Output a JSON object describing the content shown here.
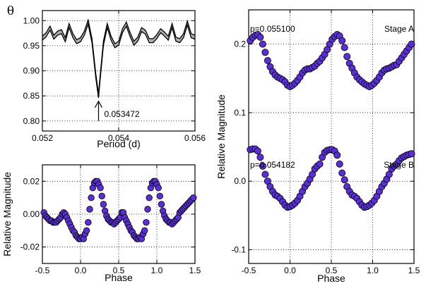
{
  "colors": {
    "marker_fill": "#5a2fd6",
    "marker_edge": "#000000",
    "line": "#000000",
    "band": "#666666"
  },
  "chart_data": [
    {
      "id": "periodogram",
      "type": "line",
      "title": "",
      "xlabel": "Period (d)",
      "ylabel": "θ",
      "xlim": [
        0.052,
        0.056
      ],
      "ylim": [
        0.78,
        1.02
      ],
      "xticks": [
        "0.052",
        "0.054",
        "0.056"
      ],
      "xtick_values": [
        0.052,
        0.054,
        0.056
      ],
      "yticks": [
        "0.80",
        "0.85",
        "0.90",
        "0.95",
        "1.00"
      ],
      "ytick_values": [
        0.8,
        0.85,
        0.9,
        0.95,
        1.0
      ],
      "grid": true,
      "band_halfwidth": 0.004,
      "annotation": {
        "text": "0.053472",
        "x": 0.053472,
        "y_tip": 0.845,
        "y_tail": 0.8
      },
      "x": [
        0.052,
        0.0521,
        0.0522,
        0.0523,
        0.0524,
        0.0525,
        0.0526,
        0.0527,
        0.0528,
        0.0529,
        0.053,
        0.0531,
        0.0532,
        0.0533,
        0.0534,
        0.05347,
        0.0535,
        0.0536,
        0.0537,
        0.0538,
        0.0539,
        0.054,
        0.0541,
        0.0542,
        0.0543,
        0.0544,
        0.0545,
        0.0546,
        0.0547,
        0.0548,
        0.0549,
        0.055,
        0.0551,
        0.0552,
        0.0553,
        0.0554,
        0.0555,
        0.0556,
        0.0557,
        0.0558,
        0.0559,
        0.056
      ],
      "y": [
        0.965,
        0.972,
        0.985,
        0.967,
        0.975,
        0.978,
        0.962,
        0.99,
        0.97,
        0.958,
        0.962,
        0.975,
        0.997,
        0.96,
        0.89,
        0.85,
        0.875,
        0.955,
        0.99,
        0.965,
        0.95,
        0.955,
        0.98,
        0.993,
        0.972,
        0.955,
        0.963,
        0.982,
        0.977,
        0.96,
        0.96,
        0.968,
        0.98,
        0.973,
        0.965,
        0.99,
        0.963,
        0.96,
        0.97,
        0.995,
        0.97,
        0.967
      ]
    },
    {
      "id": "phase-lower-left",
      "type": "scatter",
      "title": "",
      "xlabel": "Phase",
      "ylabel": "Relative Magnitude",
      "xlim": [
        -0.5,
        1.5
      ],
      "ylim": [
        0.03,
        -0.03
      ],
      "xticks": [
        "-0.5",
        "0.0",
        "0.5",
        "1.0",
        "1.5"
      ],
      "xtick_values": [
        -0.5,
        0.0,
        0.5,
        1.0,
        1.5
      ],
      "yticks": [
        "-0.02",
        "0.00",
        "0.02"
      ],
      "ytick_values": [
        -0.02,
        0.0,
        0.02
      ],
      "grid": true,
      "x": [
        -0.48,
        -0.46,
        -0.44,
        -0.42,
        -0.4,
        -0.38,
        -0.36,
        -0.34,
        -0.32,
        -0.3,
        -0.28,
        -0.26,
        -0.24,
        -0.22,
        -0.2,
        -0.18,
        -0.16,
        -0.14,
        -0.12,
        -0.1,
        -0.08,
        -0.06,
        -0.04,
        -0.02,
        0.0,
        0.02,
        0.04,
        0.06,
        0.08,
        0.1,
        0.12,
        0.14,
        0.16,
        0.18,
        0.2,
        0.22,
        0.24,
        0.26,
        0.28,
        0.3,
        0.32,
        0.34,
        0.36,
        0.38,
        0.4,
        0.42,
        0.44,
        0.46,
        0.48,
        0.5,
        0.52,
        0.54,
        0.56,
        0.58,
        0.6,
        0.62,
        0.64,
        0.66,
        0.68,
        0.7,
        0.72,
        0.74,
        0.76,
        0.78,
        0.8,
        0.82,
        0.84,
        0.86,
        0.88,
        0.9,
        0.92,
        0.94,
        0.96,
        0.98,
        1.0,
        1.02,
        1.04,
        1.06,
        1.08,
        1.1,
        1.12,
        1.14,
        1.16,
        1.18,
        1.2,
        1.22,
        1.24,
        1.26,
        1.28,
        1.3,
        1.32,
        1.34,
        1.36,
        1.38,
        1.4,
        1.42,
        1.44,
        1.46,
        1.48
      ],
      "y": [
        0.001,
        -0.001,
        -0.002,
        -0.003,
        -0.004,
        -0.004,
        -0.005,
        -0.005,
        -0.005,
        -0.004,
        -0.003,
        -0.002,
        0.0,
        0.001,
        0.0,
        -0.002,
        -0.004,
        -0.006,
        -0.008,
        -0.01,
        -0.011,
        -0.013,
        -0.014,
        -0.015,
        -0.015,
        -0.014,
        -0.015,
        -0.012,
        -0.01,
        -0.005,
        0.003,
        0.01,
        0.016,
        0.019,
        0.02,
        0.02,
        0.018,
        0.016,
        0.011,
        0.006,
        0.002,
        -0.001,
        -0.003,
        -0.004,
        -0.005,
        -0.005,
        -0.006,
        -0.005,
        -0.004,
        -0.003,
        -0.002,
        0.001,
        0.001,
        -0.002,
        -0.004,
        -0.006,
        -0.008,
        -0.01,
        -0.011,
        -0.013,
        -0.014,
        -0.015,
        -0.015,
        -0.014,
        -0.015,
        -0.012,
        -0.01,
        -0.005,
        0.003,
        0.01,
        0.016,
        0.019,
        0.02,
        0.02,
        0.018,
        0.016,
        0.011,
        0.006,
        0.002,
        -0.001,
        -0.003,
        -0.004,
        -0.005,
        -0.005,
        -0.006,
        -0.005,
        -0.004,
        -0.003,
        -0.002,
        0.001,
        0.002,
        0.003,
        0.004,
        0.005,
        0.006,
        0.007,
        0.008,
        0.009,
        0.01
      ]
    },
    {
      "id": "phase-right",
      "type": "scatter",
      "title": "",
      "xlabel": "Phase",
      "ylabel": "Relative Magnitude",
      "xlim": [
        -0.5,
        1.5
      ],
      "ylim": [
        0.25,
        -0.12
      ],
      "xticks": [
        "-0.5",
        "0.0",
        "0.5",
        "1.0",
        "1.5"
      ],
      "xtick_values": [
        -0.5,
        0.0,
        0.5,
        1.0,
        1.5
      ],
      "yticks": [
        "-0.1",
        "0.0",
        "0.1",
        "0.2"
      ],
      "ytick_values": [
        -0.1,
        0.0,
        0.1,
        0.2
      ],
      "grid": true,
      "series": [
        {
          "name": "Stage A",
          "label_left": "p=0.055100",
          "x": [
            -0.48,
            -0.45,
            -0.42,
            -0.39,
            -0.36,
            -0.33,
            -0.3,
            -0.27,
            -0.24,
            -0.21,
            -0.18,
            -0.15,
            -0.12,
            -0.09,
            -0.06,
            -0.03,
            0.0,
            0.03,
            0.06,
            0.09,
            0.12,
            0.15,
            0.18,
            0.21,
            0.24,
            0.27,
            0.3,
            0.33,
            0.36,
            0.39,
            0.42,
            0.45,
            0.48,
            0.51,
            0.54,
            0.57,
            0.6,
            0.63,
            0.66,
            0.69,
            0.72,
            0.75,
            0.78,
            0.81,
            0.84,
            0.87,
            0.9,
            0.93,
            0.96,
            0.99,
            1.02,
            1.05,
            1.08,
            1.11,
            1.14,
            1.17,
            1.2,
            1.23,
            1.26,
            1.29,
            1.32,
            1.35,
            1.38,
            1.41,
            1.44,
            1.47
          ],
          "y": [
            0.046,
            0.047,
            0.047,
            0.044,
            0.035,
            0.022,
            0.01,
            0.0,
            -0.008,
            -0.015,
            -0.02,
            -0.022,
            -0.025,
            -0.03,
            -0.035,
            -0.038,
            -0.037,
            -0.035,
            -0.032,
            -0.028,
            -0.022,
            -0.015,
            -0.008,
            -0.003,
            0.003,
            0.01,
            0.018,
            0.022,
            0.025,
            0.035,
            0.042,
            0.045,
            0.046,
            0.046,
            0.044,
            0.038,
            0.025,
            0.012,
            0.002,
            -0.008,
            -0.015,
            -0.02,
            -0.022,
            -0.025,
            -0.03,
            -0.035,
            -0.038,
            -0.037,
            -0.035,
            -0.032,
            -0.028,
            -0.022,
            -0.015,
            -0.008,
            -0.003,
            0.003,
            0.01,
            0.018,
            0.022,
            0.025,
            0.03,
            0.034,
            0.036,
            0.038,
            0.039,
            0.04
          ]
        },
        {
          "name": "Stage B",
          "label_left": "p=0.054182",
          "x": [
            -0.48,
            -0.45,
            -0.42,
            -0.39,
            -0.36,
            -0.33,
            -0.3,
            -0.27,
            -0.24,
            -0.21,
            -0.18,
            -0.15,
            -0.12,
            -0.09,
            -0.06,
            -0.03,
            0.0,
            0.03,
            0.06,
            0.09,
            0.12,
            0.15,
            0.18,
            0.21,
            0.24,
            0.27,
            0.3,
            0.33,
            0.36,
            0.39,
            0.42,
            0.45,
            0.48,
            0.51,
            0.54,
            0.57,
            0.6,
            0.63,
            0.66,
            0.69,
            0.72,
            0.75,
            0.78,
            0.81,
            0.84,
            0.87,
            0.9,
            0.93,
            0.96,
            0.99,
            1.02,
            1.05,
            1.08,
            1.11,
            1.14,
            1.17,
            1.2,
            1.23,
            1.26,
            1.29,
            1.32,
            1.35,
            1.38,
            1.41,
            1.44,
            1.47
          ],
          "y": [
            0.205,
            0.21,
            0.213,
            0.214,
            0.21,
            0.2,
            0.188,
            0.176,
            0.167,
            0.16,
            0.155,
            0.152,
            0.15,
            0.148,
            0.145,
            0.14,
            0.138,
            0.14,
            0.143,
            0.147,
            0.152,
            0.158,
            0.162,
            0.164,
            0.164,
            0.166,
            0.168,
            0.172,
            0.175,
            0.18,
            0.185,
            0.192,
            0.2,
            0.207,
            0.211,
            0.214,
            0.212,
            0.205,
            0.195,
            0.182,
            0.172,
            0.165,
            0.158,
            0.152,
            0.148,
            0.145,
            0.142,
            0.14,
            0.138,
            0.14,
            0.143,
            0.147,
            0.152,
            0.158,
            0.162,
            0.164,
            0.165,
            0.167,
            0.169,
            0.17,
            0.175,
            0.18,
            0.185,
            0.19,
            0.195,
            0.2
          ]
        }
      ]
    }
  ]
}
